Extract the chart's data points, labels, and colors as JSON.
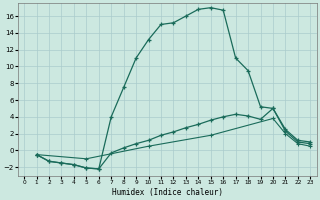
{
  "xlabel": "Humidex (Indice chaleur)",
  "bg_color": "#cce8e0",
  "grid_color": "#aacccc",
  "line_color": "#1a6b5a",
  "xlim": [
    -0.5,
    23.5
  ],
  "ylim": [
    -3.0,
    17.5
  ],
  "xticks": [
    0,
    1,
    2,
    3,
    4,
    5,
    6,
    7,
    8,
    9,
    10,
    11,
    12,
    13,
    14,
    15,
    16,
    17,
    18,
    19,
    20,
    21,
    22,
    23
  ],
  "yticks": [
    -2,
    0,
    2,
    4,
    6,
    8,
    10,
    12,
    14,
    16
  ],
  "line1_x": [
    1,
    2,
    3,
    4,
    5,
    6,
    7,
    8,
    9,
    10,
    11,
    12,
    13,
    14,
    15,
    16,
    17,
    18,
    19,
    20,
    21,
    22,
    23
  ],
  "line1_y": [
    -0.5,
    -1.3,
    -1.5,
    -1.7,
    -2.1,
    -2.2,
    4.0,
    7.5,
    11.0,
    13.2,
    15.0,
    15.2,
    16.0,
    16.8,
    17.0,
    16.7,
    11.0,
    9.5,
    5.2,
    5.0,
    2.5,
    1.2,
    1.0
  ],
  "line2_x": [
    1,
    2,
    3,
    4,
    5,
    6,
    7,
    8,
    9,
    10,
    11,
    12,
    13,
    14,
    15,
    16,
    17,
    18,
    19,
    20,
    21,
    22,
    23
  ],
  "line2_y": [
    -0.5,
    -1.3,
    -1.5,
    -1.7,
    -2.1,
    -2.2,
    -0.3,
    0.3,
    0.8,
    1.2,
    1.8,
    2.2,
    2.7,
    3.1,
    3.6,
    4.0,
    4.3,
    4.1,
    3.7,
    5.0,
    2.3,
    1.0,
    0.8
  ],
  "line3_x": [
    1,
    5,
    10,
    15,
    20,
    21,
    22,
    23
  ],
  "line3_y": [
    -0.5,
    -1.0,
    0.5,
    1.8,
    3.8,
    2.0,
    0.8,
    0.5
  ]
}
